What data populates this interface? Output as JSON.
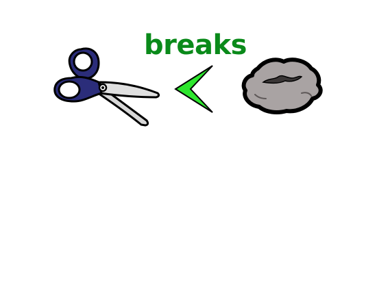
{
  "relation": {
    "label": "breaks",
    "label_color": "#0a8a1a"
  },
  "left_item": {
    "icon": "scissors-icon",
    "handle_color": "#2b2d7a",
    "blade_color": "#d8d8d8"
  },
  "comparator": {
    "icon": "less-than-arrow-icon",
    "color": "#2ee62e"
  },
  "right_item": {
    "icon": "rock-icon",
    "color": "#a9a3a3"
  }
}
